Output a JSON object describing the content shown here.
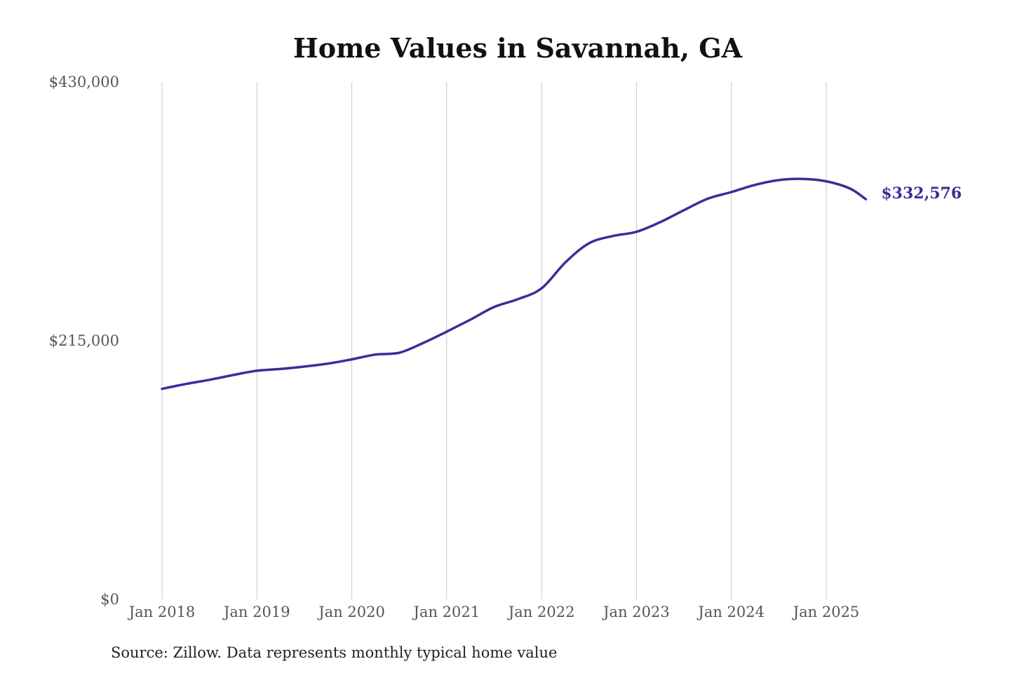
{
  "chart_data": {
    "type": "line",
    "title": "Home Values in Savannah, GA",
    "xlabel": "",
    "ylabel": "",
    "source": "Source: Zillow. Data represents monthly typical home value",
    "ylim": [
      0,
      430000
    ],
    "y_ticks": [
      {
        "value": 0,
        "label": "$0"
      },
      {
        "value": 215000,
        "label": "$215,000"
      },
      {
        "value": 430000,
        "label": "$430,000"
      }
    ],
    "x_ticks": [
      {
        "value": "2018-01",
        "label": "Jan 2018"
      },
      {
        "value": "2019-01",
        "label": "Jan 2019"
      },
      {
        "value": "2020-01",
        "label": "Jan 2020"
      },
      {
        "value": "2021-01",
        "label": "Jan 2021"
      },
      {
        "value": "2022-01",
        "label": "Jan 2022"
      },
      {
        "value": "2023-01",
        "label": "Jan 2023"
      },
      {
        "value": "2024-01",
        "label": "Jan 2024"
      },
      {
        "value": "2025-01",
        "label": "Jan 2025"
      }
    ],
    "grid": "vertical",
    "series": [
      {
        "color": "#35309a",
        "end_label": "$332,576",
        "points": [
          {
            "x": "2018-01",
            "y": 175000
          },
          {
            "x": "2018-04",
            "y": 179000
          },
          {
            "x": "2018-07",
            "y": 182500
          },
          {
            "x": "2018-10",
            "y": 186500
          },
          {
            "x": "2019-01",
            "y": 190000
          },
          {
            "x": "2019-04",
            "y": 191500
          },
          {
            "x": "2019-07",
            "y": 193500
          },
          {
            "x": "2019-10",
            "y": 196000
          },
          {
            "x": "2020-01",
            "y": 199500
          },
          {
            "x": "2020-04",
            "y": 203500
          },
          {
            "x": "2020-07",
            "y": 205000
          },
          {
            "x": "2020-10",
            "y": 213000
          },
          {
            "x": "2021-01",
            "y": 222500
          },
          {
            "x": "2021-04",
            "y": 232500
          },
          {
            "x": "2021-07",
            "y": 243000
          },
          {
            "x": "2021-10",
            "y": 249500
          },
          {
            "x": "2022-01",
            "y": 258500
          },
          {
            "x": "2022-04",
            "y": 280000
          },
          {
            "x": "2022-07",
            "y": 296000
          },
          {
            "x": "2022-10",
            "y": 302000
          },
          {
            "x": "2023-01",
            "y": 305500
          },
          {
            "x": "2023-04",
            "y": 313500
          },
          {
            "x": "2023-07",
            "y": 323500
          },
          {
            "x": "2023-10",
            "y": 333000
          },
          {
            "x": "2024-01",
            "y": 338500
          },
          {
            "x": "2024-04",
            "y": 344500
          },
          {
            "x": "2024-07",
            "y": 348500
          },
          {
            "x": "2024-10",
            "y": 349500
          },
          {
            "x": "2025-01",
            "y": 347500
          },
          {
            "x": "2025-04",
            "y": 341500
          },
          {
            "x": "2025-06",
            "y": 332576
          }
        ]
      }
    ]
  }
}
